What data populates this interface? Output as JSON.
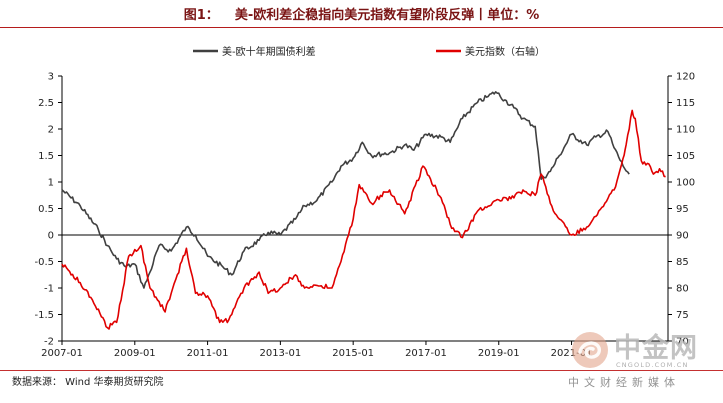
{
  "title": {
    "figure": "图1：",
    "text": "美-欧利差企稳指向美元指数有望阶段反弹丨单位：%"
  },
  "source": "数据来源：  Wind  华泰期货研究院",
  "watermark": {
    "name": "中金网",
    "url": "CNGOLD.COM.CN",
    "slogan": "中文财经新媒体"
  },
  "colors": {
    "spread": "#404040",
    "usd_index": "#e00000",
    "accent": "#b51c1c"
  },
  "chart_data": {
    "type": "line",
    "title": "",
    "legend_position": "top-center",
    "grid": false,
    "x_tick_labels": [
      "2007-01",
      "2009-01",
      "2011-01",
      "2013-01",
      "2015-01",
      "2017-01",
      "2019-01",
      "2021-01"
    ],
    "left_axis": {
      "ylim": [
        -2,
        3
      ],
      "ticks": [
        "-2",
        "-1.5",
        "-1",
        "-0.5",
        "0",
        "0.5",
        "1",
        "1.5",
        "2",
        "2.5",
        "3"
      ]
    },
    "right_axis": {
      "ylim": [
        70,
        120
      ],
      "ticks": [
        "70",
        "75",
        "80",
        "85",
        "90",
        "95",
        "100",
        "105",
        "110",
        "115",
        "120"
      ]
    },
    "series": [
      {
        "name": "美-欧十年期国债利差",
        "axis": "left",
        "color": "#404040",
        "points": [
          [
            "2007-01",
            0.85
          ],
          [
            "2007-07",
            0.55
          ],
          [
            "2008-01",
            0.1
          ],
          [
            "2008-04",
            -0.2
          ],
          [
            "2008-07",
            -0.45
          ],
          [
            "2008-10",
            -0.6
          ],
          [
            "2009-01",
            -0.55
          ],
          [
            "2009-04",
            -1.0
          ],
          [
            "2009-06",
            -0.7
          ],
          [
            "2009-09",
            -0.2
          ],
          [
            "2010-01",
            -0.3
          ],
          [
            "2010-06",
            0.15
          ],
          [
            "2010-09",
            0.0
          ],
          [
            "2011-01",
            -0.4
          ],
          [
            "2011-06",
            -0.6
          ],
          [
            "2011-09",
            -0.75
          ],
          [
            "2012-01",
            -0.3
          ],
          [
            "2012-06",
            -0.1
          ],
          [
            "2012-09",
            0.05
          ],
          [
            "2013-01",
            0.0
          ],
          [
            "2013-06",
            0.3
          ],
          [
            "2013-09",
            0.55
          ],
          [
            "2014-01",
            0.65
          ],
          [
            "2014-06",
            1.0
          ],
          [
            "2014-09",
            1.3
          ],
          [
            "2015-01",
            1.45
          ],
          [
            "2015-04",
            1.75
          ],
          [
            "2015-07",
            1.5
          ],
          [
            "2016-01",
            1.55
          ],
          [
            "2016-06",
            1.7
          ],
          [
            "2016-09",
            1.6
          ],
          [
            "2017-01",
            1.9
          ],
          [
            "2017-06",
            1.85
          ],
          [
            "2017-09",
            1.75
          ],
          [
            "2018-01",
            2.2
          ],
          [
            "2018-06",
            2.5
          ],
          [
            "2018-09",
            2.6
          ],
          [
            "2018-12",
            2.7
          ],
          [
            "2019-03",
            2.55
          ],
          [
            "2019-06",
            2.4
          ],
          [
            "2019-09",
            2.2
          ],
          [
            "2020-01",
            2.05
          ],
          [
            "2020-03",
            1.05
          ],
          [
            "2020-06",
            1.2
          ],
          [
            "2020-09",
            1.5
          ],
          [
            "2021-01",
            1.9
          ],
          [
            "2021-06",
            1.7
          ],
          [
            "2021-09",
            1.85
          ],
          [
            "2022-01",
            1.95
          ],
          [
            "2022-03",
            1.65
          ],
          [
            "2022-06",
            1.3
          ],
          [
            "2022-08",
            1.15
          ]
        ]
      },
      {
        "name": "美元指数（右轴）",
        "axis": "right",
        "color": "#e00000",
        "points": [
          [
            "2007-01",
            84.5
          ],
          [
            "2007-07",
            81.0
          ],
          [
            "2008-01",
            76.0
          ],
          [
            "2008-04",
            72.5
          ],
          [
            "2008-07",
            73.5
          ],
          [
            "2008-11",
            86.0
          ],
          [
            "2009-03",
            88.0
          ],
          [
            "2009-06",
            80.0
          ],
          [
            "2009-11",
            75.5
          ],
          [
            "2010-01",
            79.0
          ],
          [
            "2010-06",
            87.5
          ],
          [
            "2010-09",
            79.0
          ],
          [
            "2011-01",
            78.5
          ],
          [
            "2011-05",
            73.5
          ],
          [
            "2011-08",
            74.0
          ],
          [
            "2012-01",
            80.0
          ],
          [
            "2012-06",
            83.0
          ],
          [
            "2012-09",
            79.0
          ],
          [
            "2013-01",
            80.0
          ],
          [
            "2013-06",
            82.5
          ],
          [
            "2013-09",
            80.0
          ],
          [
            "2014-01",
            80.5
          ],
          [
            "2014-06",
            80.0
          ],
          [
            "2014-09",
            85.0
          ],
          [
            "2015-01",
            93.0
          ],
          [
            "2015-03",
            99.5
          ],
          [
            "2015-07",
            96.0
          ],
          [
            "2016-01",
            98.5
          ],
          [
            "2016-06",
            94.0
          ],
          [
            "2016-12",
            103.0
          ],
          [
            "2017-06",
            97.0
          ],
          [
            "2017-09",
            92.0
          ],
          [
            "2018-01",
            89.5
          ],
          [
            "2018-06",
            94.5
          ],
          [
            "2018-12",
            96.5
          ],
          [
            "2019-06",
            97.0
          ],
          [
            "2019-09",
            98.5
          ],
          [
            "2020-01",
            97.5
          ],
          [
            "2020-03",
            101.5
          ],
          [
            "2020-06",
            96.0
          ],
          [
            "2020-09",
            93.0
          ],
          [
            "2021-01",
            90.0
          ],
          [
            "2021-06",
            91.5
          ],
          [
            "2021-09",
            93.5
          ],
          [
            "2021-12",
            96.0
          ],
          [
            "2022-03",
            98.5
          ],
          [
            "2022-06",
            104.5
          ],
          [
            "2022-07",
            107.0
          ],
          [
            "2022-09",
            113.5
          ],
          [
            "2022-10",
            112.0
          ],
          [
            "2022-12",
            104.0
          ],
          [
            "2023-02",
            103.5
          ],
          [
            "2023-04",
            101.5
          ],
          [
            "2023-06",
            102.5
          ],
          [
            "2023-08",
            101.0
          ]
        ]
      }
    ]
  }
}
